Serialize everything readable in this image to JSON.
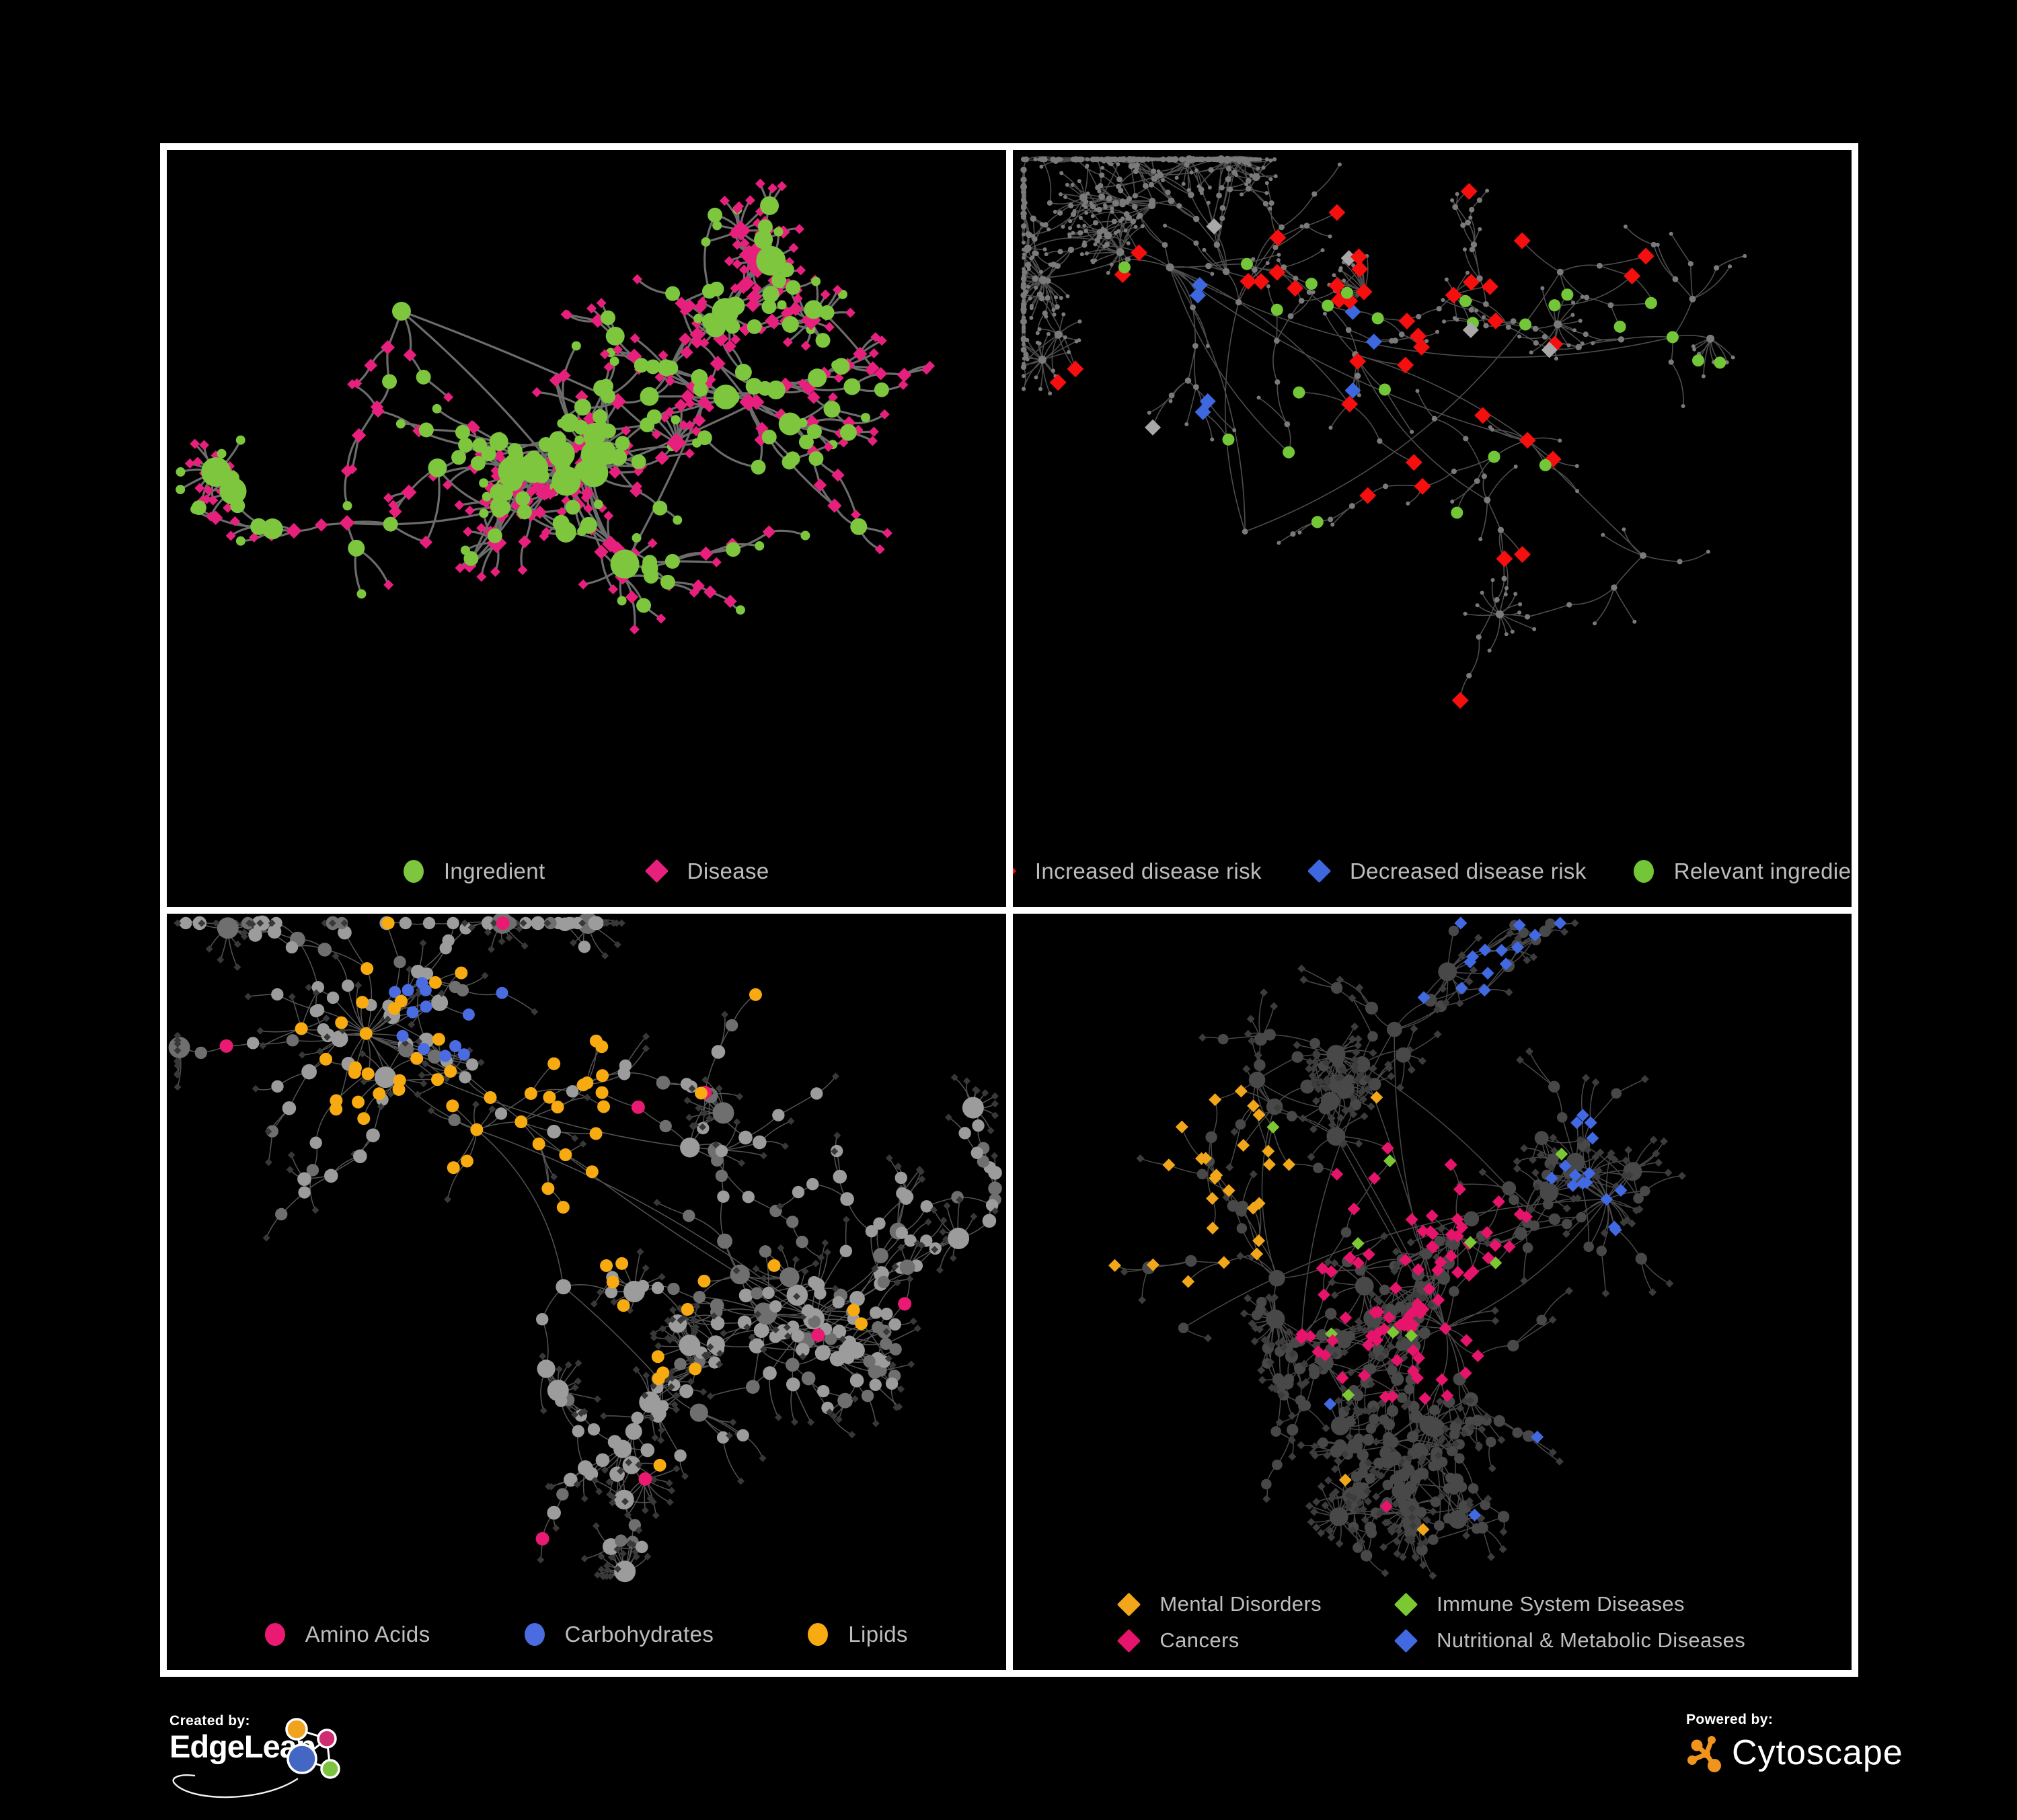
{
  "figure": {
    "background": "#000000",
    "frame_color": "#ffffff"
  },
  "branding": {
    "created_by_label": "Created by:",
    "created_by_name": "EdgeLeap",
    "powered_by_label": "Powered by:",
    "powered_by_name": "Cytoscape",
    "edgeleap_logo_colors": {
      "orange": "#f0a31f",
      "pink": "#cf2d71",
      "blue": "#4467c4",
      "green": "#7ec33f"
    },
    "cytoscape_logo_color": "#f0941e"
  },
  "legend_text_color": "#bdbdbd",
  "panels": [
    {
      "key": "ingredient_disease",
      "legend": [
        {
          "label": "Ingredient",
          "shape": "circle",
          "color": "#7DC63E"
        },
        {
          "label": "Disease",
          "shape": "diamond",
          "color": "#E8207D"
        }
      ],
      "net": {
        "seed": 11,
        "nodes": 520,
        "hubs": 9,
        "bursts": 18,
        "chain": 0.4,
        "extra_links": 38,
        "extra_dist": 130,
        "edge_color": "#787878",
        "edge_width": 3.2,
        "style": "ingredient_disease",
        "colors": {
          "ingredient": "#7DC63E",
          "disease": "#E8207D"
        }
      }
    },
    {
      "key": "risk",
      "legend": [
        {
          "label": "Increased disease risk",
          "shape": "diamond",
          "color": "#F50F0F"
        },
        {
          "label": "Decreased disease risk",
          "shape": "diamond",
          "color": "#3E68E0"
        },
        {
          "label": "Relevant ingredient",
          "shape": "circle",
          "color": "#72C637"
        }
      ],
      "net": {
        "seed": 7,
        "nodes": 760,
        "hubs": 11,
        "bursts": 26,
        "chain": 0.62,
        "extra_links": 14,
        "extra_dist": 160,
        "edge_color": "#565656",
        "edge_width": 1.6,
        "style": "risk",
        "colors": {
          "base": "#7A7A7A",
          "increased": "#F50F0F",
          "decreased": "#3E68E0",
          "neutral": "#A8A8A8",
          "ingredient": "#72C637"
        }
      }
    },
    {
      "key": "nutrients",
      "legend": [
        {
          "label": "Amino Acids",
          "shape": "circle",
          "color": "#EA1A72"
        },
        {
          "label": "Carbohydrates",
          "shape": "circle",
          "color": "#4A6CE0"
        },
        {
          "label": "Lipids",
          "shape": "circle",
          "color": "#F7AB10"
        }
      ],
      "net": {
        "seed": 23,
        "nodes": 720,
        "hubs": 10,
        "bursts": 24,
        "chain": 0.5,
        "extra_links": 55,
        "extra_dist": 120,
        "edge_color": "#5E5E5E",
        "edge_width": 1.5,
        "style": "nutrients",
        "colors": {
          "leaf": "#383838",
          "node": "#9C9C9C",
          "amino": "#EA1A72",
          "carbs": "#4A6CE0",
          "lipids": "#F7AB10"
        }
      }
    },
    {
      "key": "disease_classes",
      "legend": [
        {
          "label": "Mental Disorders",
          "shape": "diamond",
          "color": "#F2A71B"
        },
        {
          "label": "Immune System Diseases",
          "shape": "diamond",
          "color": "#7CC832"
        },
        {
          "label": "Cancers",
          "shape": "diamond",
          "color": "#E7146B"
        },
        {
          "label": "Nutritional & Metabolic Diseases",
          "shape": "diamond",
          "color": "#4169E1"
        }
      ],
      "net": {
        "seed": 41,
        "nodes": 840,
        "hubs": 12,
        "bursts": 24,
        "chain": 0.45,
        "extra_links": 60,
        "extra_dist": 120,
        "edge_color": "#525252",
        "edge_width": 1.5,
        "style": "disease_classes",
        "colors": {
          "base": "#3C3C3C",
          "hub": "#484848",
          "mental": "#F2A71B",
          "immune": "#7CC832",
          "cancer": "#E7146B",
          "metabolic": "#4169E1"
        }
      }
    }
  ]
}
